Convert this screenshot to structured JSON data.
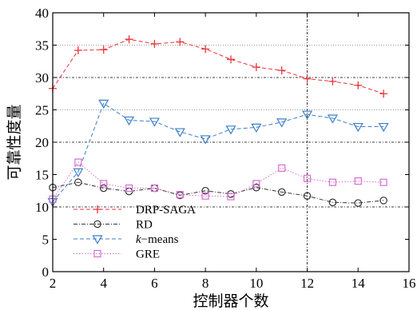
{
  "chart_data": {
    "type": "line",
    "title": "",
    "xlabel": "控制器个数",
    "ylabel": "可靠性度量",
    "xlim": [
      2,
      16
    ],
    "ylim": [
      0,
      40
    ],
    "xticks": [
      2,
      4,
      6,
      8,
      10,
      12,
      14,
      16
    ],
    "yticks": [
      0,
      5,
      10,
      15,
      20,
      25,
      30,
      35,
      40
    ],
    "x": [
      2,
      3,
      4,
      5,
      6,
      7,
      8,
      9,
      10,
      11,
      12,
      13,
      14,
      15
    ],
    "grid": "dotted horizontal gridlines at 10, 20, 30, 40 (dash-dot) and 25, 35 (dotted); dash-dot vertical line at x = 12",
    "legend_position": "lower-left",
    "series": [
      {
        "name": "DRP-SAGA",
        "name_parts": {
          "italic": "",
          "rest": "DRP-SAGA"
        },
        "color": "#e8343c",
        "marker": "plus",
        "line": "dashed",
        "values": [
          28.3,
          34.2,
          34.3,
          35.9,
          35.2,
          35.5,
          34.4,
          32.8,
          31.6,
          31.1,
          29.8,
          29.4,
          28.8,
          27.5
        ]
      },
      {
        "name": "RD",
        "name_parts": {
          "italic": "",
          "rest": "RD"
        },
        "color": "#333333",
        "marker": "circle",
        "line": "dash-dot",
        "values": [
          13.0,
          13.8,
          12.9,
          12.4,
          12.9,
          11.8,
          12.5,
          12.0,
          13.0,
          12.3,
          11.7,
          10.7,
          10.6,
          11.0
        ]
      },
      {
        "name": "k−means",
        "name_parts": {
          "italic": "k",
          "rest": "−means"
        },
        "color": "#3c7fc8",
        "marker": "triangle-down",
        "line": "dashed",
        "values": [
          10.8,
          15.4,
          26.0,
          23.4,
          23.2,
          21.6,
          20.5,
          22.0,
          22.3,
          23.1,
          24.3,
          23.7,
          22.4,
          22.4
        ]
      },
      {
        "name": "GRE",
        "name_parts": {
          "italic": "",
          "rest": "GRE"
        },
        "color": "#d66fd0",
        "marker": "square",
        "line": "dotted",
        "values": [
          11.2,
          16.9,
          13.6,
          12.9,
          12.9,
          11.9,
          11.7,
          11.6,
          13.6,
          16.0,
          14.4,
          13.8,
          14.0,
          13.8
        ]
      }
    ]
  }
}
